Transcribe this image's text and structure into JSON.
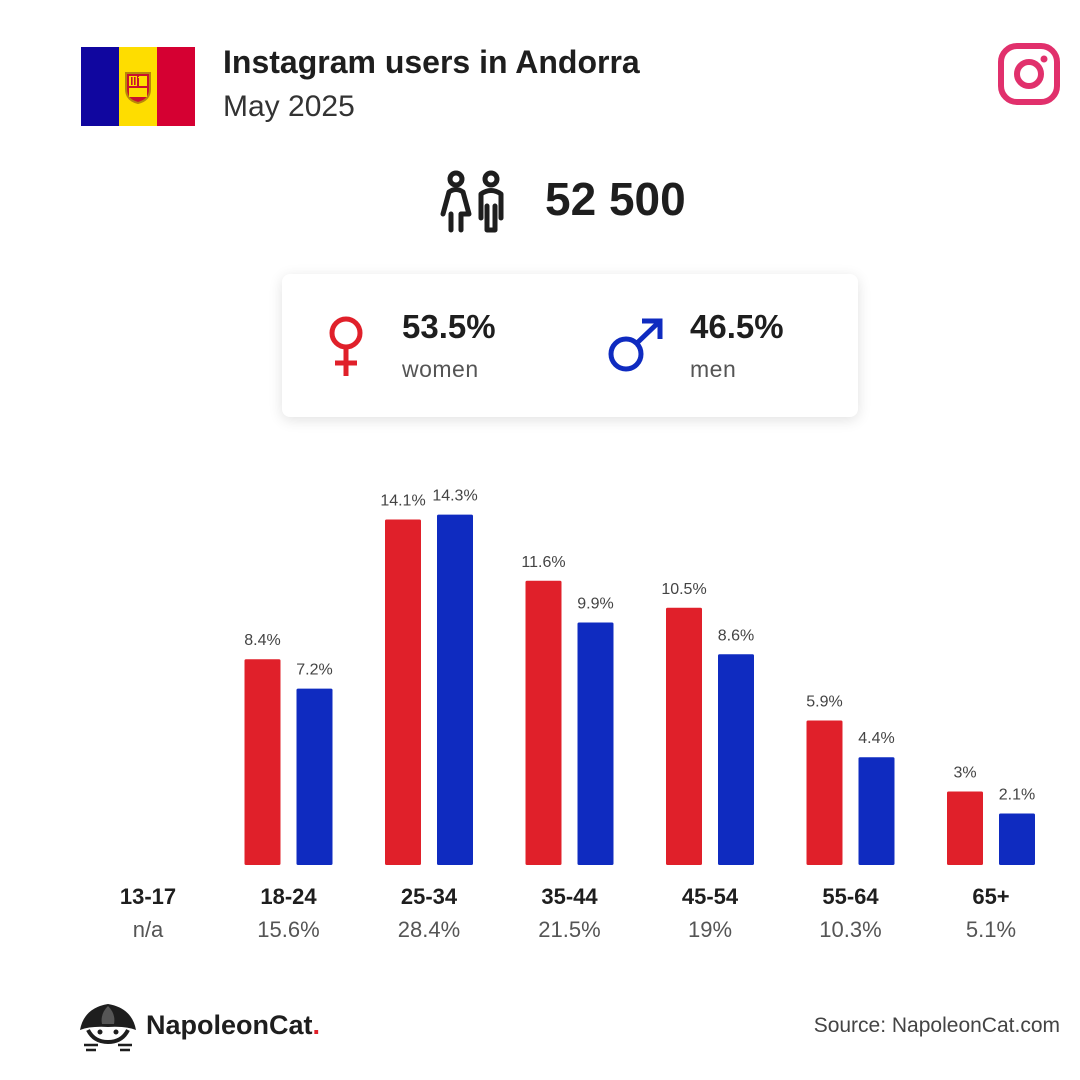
{
  "header": {
    "title": "Instagram users in Andorra",
    "subtitle": "May 2025"
  },
  "icons": {
    "flag": "andorra-flag",
    "platform": "instagram-icon",
    "people": "people-icon",
    "female": "female-symbol-icon",
    "male": "male-symbol-icon",
    "brand": "napoleoncat-logo"
  },
  "colors": {
    "women": "#e0202a",
    "men": "#0f2bc0",
    "instagram": "#e1306c",
    "flag_blue": "#10069f",
    "flag_yellow": "#fedd00",
    "flag_red": "#d50032"
  },
  "summary": {
    "total_users": "52 500",
    "women_pct": "53.5%",
    "women_label": "women",
    "men_pct": "46.5%",
    "men_label": "men"
  },
  "chart_data": {
    "type": "bar",
    "categories": [
      "13-17",
      "18-24",
      "25-34",
      "35-44",
      "45-54",
      "55-64",
      "65+"
    ],
    "category_totals": [
      "n/a",
      "15.6%",
      "28.4%",
      "21.5%",
      "19%",
      "10.3%",
      "5.1%"
    ],
    "series": [
      {
        "values": [
          null,
          8.4,
          14.1,
          11.6,
          10.5,
          5.9,
          3.0
        ],
        "labels": [
          "",
          "8.4%",
          "14.1%",
          "11.6%",
          "10.5%",
          "5.9%",
          "3%"
        ],
        "color": "#e0202a"
      },
      {
        "values": [
          null,
          7.2,
          14.3,
          9.9,
          8.6,
          4.4,
          2.1
        ],
        "labels": [
          "",
          "7.2%",
          "14.3%",
          "9.9%",
          "8.6%",
          "4.4%",
          "2.1%"
        ],
        "color": "#0f2bc0"
      }
    ],
    "ylim": [
      0,
      15
    ],
    "grid": false
  },
  "footer": {
    "brand_name": "NapoleonCat",
    "brand_dot": ".",
    "source": "Source: NapoleonCat.com"
  }
}
